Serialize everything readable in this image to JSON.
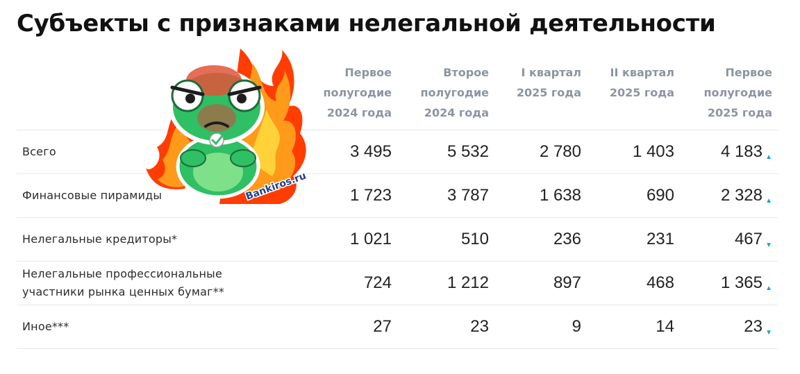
{
  "title": "Субъекты с признаками нелегальной деятельности",
  "watermark": "Bankiros.ru",
  "colors": {
    "arrow": "#1aa3c8",
    "header_text": "#8b95a1",
    "divider": "#e5e7ea"
  },
  "columns": [
    "Первое полугодие 2024 года",
    "Второе полугодие 2024 года",
    "I квартал 2025 года",
    "II квартал 2025 года",
    "Первое полугодие 2025 года"
  ],
  "header_lines": [
    [
      "Первое",
      "полугодие",
      "2024 года"
    ],
    [
      "Второе",
      "полугодие",
      "2024 года"
    ],
    [
      "I квартал",
      "2025 года"
    ],
    [
      "II квартал",
      "2025 года"
    ],
    [
      "Первое",
      "полугодие",
      "2025 года"
    ]
  ],
  "rows": [
    {
      "label": "Всего",
      "values": [
        "3 495",
        "5 532",
        "2 780",
        "1 403",
        "4 183"
      ],
      "trend": "▲",
      "trend_name": "up"
    },
    {
      "label": "Финансовые пирамиды",
      "values": [
        "1 723",
        "3 787",
        "1 638",
        "690",
        "2 328"
      ],
      "trend": "▲",
      "trend_name": "up"
    },
    {
      "label": "Нелегальные кредиторы*",
      "values": [
        "1 021",
        "510",
        "236",
        "231",
        "467"
      ],
      "trend": "▼",
      "trend_name": "down"
    },
    {
      "label": "Нелегальные профессиональные участники рынка ценных бумаг**",
      "label_lines": [
        "Нелегальные профессиональные",
        "участники рынка ценных бумаг**"
      ],
      "values": [
        "724",
        "1 212",
        "897",
        "468",
        "1 365"
      ],
      "trend": "▲",
      "trend_name": "up"
    },
    {
      "label": "Иное***",
      "values": [
        "27",
        "23",
        "9",
        "14",
        "23"
      ],
      "trend": "▼",
      "trend_name": "down"
    }
  ]
}
